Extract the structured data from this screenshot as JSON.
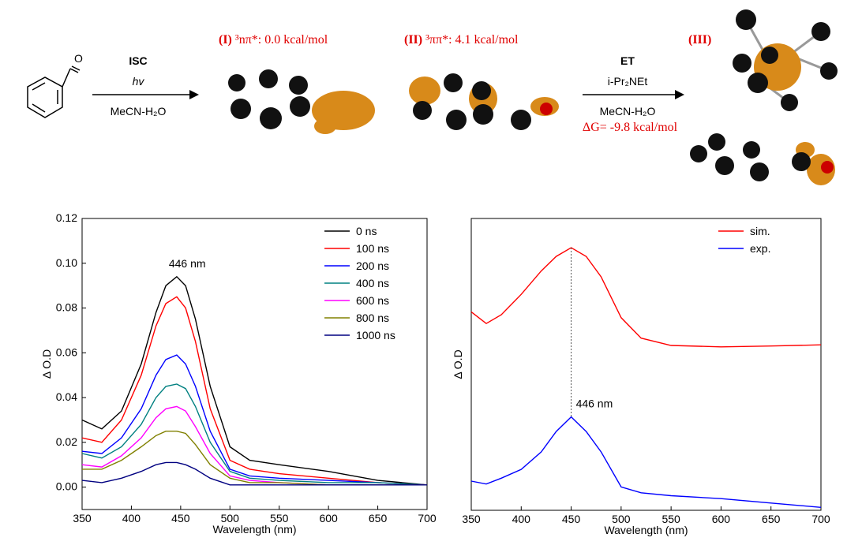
{
  "scheme": {
    "arrow1_top": "ISC",
    "arrow1_mid": "hv",
    "arrow1_bottom": "MeCN-H₂O",
    "state1_id": "(I)",
    "state1_text": "³nπ*: 0.0 kcal/mol",
    "state2_id": "(II)",
    "state2_text": "³ππ*: 4.1 kcal/mol",
    "arrow2_top": "ET",
    "arrow2_reagent": "i-Pr₂NEt",
    "arrow2_bottom": "MeCN-H₂O",
    "arrow2_energy": "ΔG= -9.8 kcal/mol",
    "state3_id": "(III)"
  },
  "chart_data": [
    {
      "type": "line",
      "xlabel": "Wavelength (nm)",
      "ylabel": "Δ O.D",
      "annotation": "446 nm",
      "x": [
        350,
        370,
        390,
        410,
        425,
        435,
        446,
        455,
        465,
        480,
        500,
        520,
        550,
        600,
        650,
        700
      ],
      "xlim": [
        350,
        700
      ],
      "xticks": [
        350,
        400,
        450,
        500,
        550,
        600,
        650,
        700
      ],
      "ylim": [
        -0.01,
        0.12
      ],
      "yticks": [
        {
          "value": 0,
          "label": "0.00"
        },
        0.02,
        0.04,
        0.06,
        0.08,
        {
          "value": 0.1,
          "label": "0.10"
        },
        0.12
      ],
      "legend": "top-right",
      "series": [
        {
          "name": "0 ns",
          "color": "#000000",
          "values": [
            0.03,
            0.026,
            0.034,
            0.055,
            0.078,
            0.09,
            0.094,
            0.09,
            0.075,
            0.045,
            0.018,
            0.012,
            0.01,
            0.007,
            0.003,
            0.001
          ]
        },
        {
          "name": "100 ns",
          "color": "#ff0000",
          "values": [
            0.022,
            0.02,
            0.03,
            0.05,
            0.072,
            0.082,
            0.085,
            0.08,
            0.065,
            0.035,
            0.012,
            0.008,
            0.006,
            0.004,
            0.002,
            0.001
          ]
        },
        {
          "name": "200 ns",
          "color": "#0000ff",
          "values": [
            0.016,
            0.015,
            0.022,
            0.035,
            0.05,
            0.057,
            0.059,
            0.055,
            0.045,
            0.025,
            0.008,
            0.005,
            0.004,
            0.003,
            0.002,
            0.001
          ]
        },
        {
          "name": "400 ns",
          "color": "#008080",
          "values": [
            0.015,
            0.013,
            0.018,
            0.028,
            0.04,
            0.045,
            0.046,
            0.044,
            0.036,
            0.02,
            0.007,
            0.004,
            0.003,
            0.002,
            0.002,
            0.001
          ]
        },
        {
          "name": "600 ns",
          "color": "#ff00ff",
          "values": [
            0.01,
            0.009,
            0.014,
            0.022,
            0.031,
            0.035,
            0.036,
            0.034,
            0.027,
            0.015,
            0.005,
            0.003,
            0.002,
            0.001,
            0.001,
            0.001
          ]
        },
        {
          "name": "800 ns",
          "color": "#808000",
          "values": [
            0.008,
            0.008,
            0.012,
            0.018,
            0.023,
            0.025,
            0.025,
            0.024,
            0.019,
            0.01,
            0.004,
            0.002,
            0.002,
            0.001,
            0.001,
            0.001
          ]
        },
        {
          "name": "1000 ns",
          "color": "#000080",
          "values": [
            0.003,
            0.002,
            0.004,
            0.007,
            0.01,
            0.011,
            0.011,
            0.01,
            0.008,
            0.004,
            0.001,
            0.001,
            0.001,
            0.001,
            0.001,
            0.001
          ]
        }
      ]
    },
    {
      "type": "line",
      "xlabel": "Wavelength (nm)",
      "ylabel": "Δ O.D",
      "annotation": "446 nm",
      "x": [
        350,
        365,
        380,
        400,
        420,
        435,
        450,
        465,
        480,
        500,
        520,
        550,
        600,
        650,
        700
      ],
      "xlim": [
        350,
        700
      ],
      "xticks": [
        350,
        400,
        450,
        500,
        550,
        600,
        650,
        700
      ],
      "ylim": [
        0,
        1
      ],
      "legend": "top-right",
      "series": [
        {
          "name": "sim.",
          "color": "#ff0000",
          "values": [
            0.68,
            0.64,
            0.67,
            0.74,
            0.82,
            0.87,
            0.9,
            0.87,
            0.8,
            0.66,
            0.59,
            0.565,
            0.56,
            0.563,
            0.567
          ]
        },
        {
          "name": "exp.",
          "color": "#0000ff",
          "values": [
            0.1,
            0.09,
            0.11,
            0.14,
            0.2,
            0.27,
            0.32,
            0.27,
            0.2,
            0.08,
            0.06,
            0.05,
            0.04,
            0.025,
            0.01
          ]
        }
      ]
    }
  ]
}
